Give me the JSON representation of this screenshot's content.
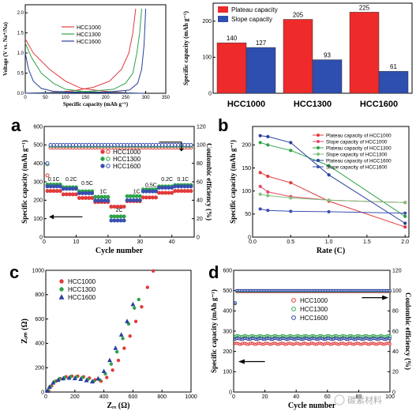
{
  "chart_data": [
    {
      "panel": "top-left",
      "type": "line",
      "xlabel": "Specific capacity (mAh g⁻¹)",
      "ylabel": "Voltage (V vs. Na⁺/Na)",
      "xlim": [
        0,
        350
      ],
      "ylim": [
        0,
        2.2
      ],
      "xticks": [
        "0",
        "50",
        "100",
        "150",
        "200",
        "250",
        "300",
        "350"
      ],
      "yticks": [
        "0.0",
        "0.5",
        "1.0",
        "1.5",
        "2.0"
      ],
      "legend_position": "top-left",
      "series": [
        {
          "name": "HCC1000",
          "color": "#e23a3a",
          "discharge": [
            [
              0,
              1.35
            ],
            [
              20,
              1.0
            ],
            [
              60,
              0.6
            ],
            [
              100,
              0.3
            ],
            [
              140,
              0.12
            ],
            [
              200,
              0.05
            ],
            [
              245,
              0.02
            ],
            [
              270,
              0.0
            ]
          ],
          "charge": [
            [
              0,
              0.0
            ],
            [
              60,
              0.02
            ],
            [
              120,
              0.06
            ],
            [
              170,
              0.15
            ],
            [
              210,
              0.3
            ],
            [
              240,
              0.6
            ],
            [
              258,
              1.0
            ],
            [
              268,
              1.5
            ],
            [
              275,
              2.1
            ]
          ]
        },
        {
          "name": "HCC1300",
          "color": "#2fa24a",
          "discharge": [
            [
              0,
              1.25
            ],
            [
              15,
              0.9
            ],
            [
              40,
              0.5
            ],
            [
              70,
              0.25
            ],
            [
              100,
              0.1
            ],
            [
              150,
              0.04
            ],
            [
              220,
              0.02
            ],
            [
              285,
              0.0
            ]
          ],
          "charge": [
            [
              0,
              0.0
            ],
            [
              80,
              0.02
            ],
            [
              160,
              0.05
            ],
            [
              220,
              0.1
            ],
            [
              250,
              0.25
            ],
            [
              268,
              0.5
            ],
            [
              278,
              1.0
            ],
            [
              285,
              1.5
            ],
            [
              290,
              2.1
            ]
          ]
        },
        {
          "name": "HCC1600",
          "color": "#2a3f9e",
          "discharge": [
            [
              0,
              1.0
            ],
            [
              8,
              0.6
            ],
            [
              20,
              0.3
            ],
            [
              40,
              0.12
            ],
            [
              70,
              0.05
            ],
            [
              140,
              0.02
            ],
            [
              220,
              0.01
            ],
            [
              295,
              0.0
            ]
          ],
          "charge": [
            [
              0,
              0.0
            ],
            [
              100,
              0.01
            ],
            [
              200,
              0.03
            ],
            [
              260,
              0.08
            ],
            [
              280,
              0.25
            ],
            [
              290,
              0.6
            ],
            [
              296,
              1.2
            ],
            [
              300,
              2.1
            ]
          ]
        }
      ]
    },
    {
      "panel": "top-right",
      "type": "bar",
      "ylabel": "Specific capacity (mAh g⁻¹)",
      "ylim": [
        0,
        250
      ],
      "yticks": [
        "0",
        "100",
        "200"
      ],
      "categories": [
        "HCC1000",
        "HCC1300",
        "HCC1600"
      ],
      "legend_position": "top-left",
      "series": [
        {
          "name": "Plateau capacity",
          "color": "#ee2a2a",
          "values": [
            140,
            205,
            225
          ]
        },
        {
          "name": "Slope capacity",
          "color": "#2e4fb0",
          "values": [
            127,
            93,
            61
          ]
        }
      ]
    },
    {
      "panel": "a",
      "type": "scatter",
      "xlabel": "Cycle number",
      "ylabel": "Specific capacity (mAh g⁻¹)",
      "y2label": "Coulombic efficiency (%)",
      "xlim": [
        0,
        47
      ],
      "ylim": [
        0,
        600
      ],
      "y2lim": [
        0,
        120
      ],
      "xticks": [
        "0",
        "10",
        "20",
        "30",
        "40"
      ],
      "yticks": [
        "0",
        "100",
        "200",
        "300",
        "400",
        "500",
        "600"
      ],
      "y2ticks": [
        "0",
        "20",
        "40",
        "60",
        "80",
        "100",
        "120"
      ],
      "rate_labels": [
        {
          "text": "0.1C",
          "x": 3,
          "y": 305
        },
        {
          "text": "0.2C",
          "x": 8.5,
          "y": 305
        },
        {
          "text": "0.5C",
          "x": 13.5,
          "y": 283
        },
        {
          "text": "1C",
          "x": 18.5,
          "y": 237
        },
        {
          "text": "2C",
          "x": 23.5,
          "y": 138
        },
        {
          "text": "1C",
          "x": 29,
          "y": 237
        },
        {
          "text": "0.5C",
          "x": 33.5,
          "y": 273
        },
        {
          "text": "0.2C",
          "x": 38.5,
          "y": 305
        },
        {
          "text": "0.1C",
          "x": 43.5,
          "y": 305
        }
      ],
      "legend_position": "center",
      "series": [
        {
          "name": "HCC1000",
          "color": "#e23a3a",
          "capacity_steps": [
            [
              1,
              5,
              250
            ],
            [
              6,
              10,
              232
            ],
            [
              11,
              15,
              212
            ],
            [
              16,
              20,
              190
            ],
            [
              21,
              25,
              165
            ],
            [
              26,
              30,
              195
            ],
            [
              31,
              35,
              215
            ],
            [
              36,
              40,
              240
            ],
            [
              41,
              46,
              250
            ]
          ],
          "efficiency": 97
        },
        {
          "name": "HCC1300",
          "color": "#2fa24a",
          "capacity_steps": [
            [
              1,
              5,
              285
            ],
            [
              6,
              10,
              270
            ],
            [
              11,
              15,
              248
            ],
            [
              16,
              20,
              218
            ],
            [
              21,
              25,
              112
            ],
            [
              26,
              30,
              222
            ],
            [
              31,
              35,
              258
            ],
            [
              36,
              40,
              275
            ],
            [
              41,
              46,
              282
            ]
          ],
          "efficiency": 99
        },
        {
          "name": "HCC1600",
          "color": "#3a4fb0",
          "capacity_steps": [
            [
              1,
              5,
              275
            ],
            [
              6,
              10,
              262
            ],
            [
              11,
              15,
              238
            ],
            [
              16,
              20,
              198
            ],
            [
              21,
              25,
              90
            ],
            [
              26,
              30,
              200
            ],
            [
              31,
              35,
              248
            ],
            [
              36,
              40,
              268
            ],
            [
              41,
              46,
              275
            ]
          ],
          "efficiency": 100
        }
      ]
    },
    {
      "panel": "b",
      "type": "line",
      "xlabel": "Rate (C)",
      "ylabel": "Specific capacity (mAh g⁻¹)",
      "xlim": [
        0,
        2.05
      ],
      "ylim": [
        0,
        240
      ],
      "xticks": [
        "0.0",
        "0.5",
        "1.0",
        "1.5",
        "2.0"
      ],
      "yticks": [
        "0",
        "50",
        "100",
        "150",
        "200"
      ],
      "legend_position": "top-right",
      "x": [
        0.1,
        0.2,
        0.5,
        1.0,
        2.0
      ],
      "series": [
        {
          "name": "Plateau capacity of HCC1000",
          "color": "#e23a3a",
          "values": [
            140,
            132,
            118,
            78,
            22
          ]
        },
        {
          "name": "Slope capacity of HCC1000",
          "color": "#e04a6a",
          "values": [
            110,
            98,
            88,
            80,
            75
          ]
        },
        {
          "name": "Plateau capacity of HCC1300",
          "color": "#2fa24a",
          "values": [
            205,
            200,
            188,
            155,
            45
          ]
        },
        {
          "name": "Slope capacity of HCC1300",
          "color": "#7fc07a",
          "values": [
            93,
            90,
            85,
            80,
            75
          ]
        },
        {
          "name": "Plateau capacity of HCC1600",
          "color": "#2a3f9e",
          "values": [
            220,
            218,
            205,
            135,
            30
          ]
        },
        {
          "name": "Slope capacity of HCC1600",
          "color": "#3a4fb0",
          "values": [
            61,
            58,
            56,
            55,
            52
          ]
        }
      ]
    },
    {
      "panel": "c",
      "type": "scatter",
      "xlabel": "Zᵣₑ (Ω)",
      "ylabel": "Zᵢₘ (Ω)",
      "xlim": [
        0,
        1000
      ],
      "ylim": [
        0,
        1000
      ],
      "xticks": [
        "0",
        "200",
        "400",
        "600",
        "800",
        "1000"
      ],
      "yticks": [
        "0",
        "200",
        "400",
        "600",
        "800",
        "1000"
      ],
      "legend_position": "top-left",
      "series": [
        {
          "name": "HCC1000",
          "color": "#e23a3a",
          "marker": "circle",
          "points": [
            [
              20,
              10
            ],
            [
              40,
              50
            ],
            [
              70,
              90
            ],
            [
              100,
              110
            ],
            [
              140,
              125
            ],
            [
              180,
              130
            ],
            [
              220,
              130
            ],
            [
              260,
              125
            ],
            [
              300,
              115
            ],
            [
              340,
              100
            ],
            [
              380,
              90
            ],
            [
              420,
              120
            ],
            [
              460,
              180
            ],
            [
              500,
              260
            ],
            [
              540,
              360
            ],
            [
              580,
              460
            ],
            [
              620,
              580
            ],
            [
              660,
              700
            ],
            [
              700,
              860
            ],
            [
              740,
              995
            ]
          ]
        },
        {
          "name": "HCC1300",
          "color": "#2fa24a",
          "marker": "circle",
          "points": [
            [
              15,
              10
            ],
            [
              30,
              45
            ],
            [
              60,
              85
            ],
            [
              95,
              108
            ],
            [
              130,
              120
            ],
            [
              170,
              125
            ],
            [
              210,
              125
            ],
            [
              250,
              118
            ],
            [
              290,
              105
            ],
            [
              330,
              90
            ],
            [
              370,
              100
            ],
            [
              410,
              150
            ],
            [
              450,
              230
            ],
            [
              490,
              330
            ],
            [
              530,
              440
            ],
            [
              570,
              560
            ],
            [
              610,
              690
            ],
            [
              640,
              760
            ]
          ]
        },
        {
          "name": "HCC1600",
          "color": "#2a3f9e",
          "marker": "triangle",
          "points": [
            [
              12,
              8
            ],
            [
              25,
              40
            ],
            [
              50,
              75
            ],
            [
              85,
              98
            ],
            [
              120,
              110
            ],
            [
              160,
              115
            ],
            [
              200,
              112
            ],
            [
              240,
              105
            ],
            [
              280,
              95
            ],
            [
              320,
              85
            ],
            [
              360,
              110
            ],
            [
              400,
              170
            ],
            [
              440,
              260
            ],
            [
              480,
              360
            ],
            [
              520,
              470
            ],
            [
              560,
              580
            ],
            [
              600,
              720
            ]
          ]
        }
      ]
    },
    {
      "panel": "d",
      "type": "scatter",
      "xlabel": "Cycle number",
      "ylabel": "Specific capacity (mAh g⁻¹)",
      "y2label": "Coulombic efficiency (%)",
      "xlim": [
        0,
        100
      ],
      "ylim": [
        0,
        600
      ],
      "y2lim": [
        0,
        120
      ],
      "xticks": [
        "0",
        "20",
        "40",
        "60",
        "80",
        "100"
      ],
      "yticks": [
        "0",
        "100",
        "200",
        "300",
        "400",
        "500",
        "600"
      ],
      "y2ticks": [
        "0",
        "20",
        "40",
        "60",
        "80",
        "100",
        "120"
      ],
      "legend_position": "center-right",
      "series": [
        {
          "name": "HCC1000",
          "color": "#e23a3a",
          "capacity": 238,
          "efficiency": 99
        },
        {
          "name": "HCC1300",
          "color": "#2fa24a",
          "capacity": 275,
          "efficiency": 99.5
        },
        {
          "name": "HCC1600",
          "color": "#2a3f9e",
          "capacity": 262,
          "efficiency": 100
        }
      ]
    }
  ],
  "panel_labels": {
    "a": "a",
    "b": "b",
    "c": "c",
    "d": "d"
  },
  "watermark": "碳素材料"
}
